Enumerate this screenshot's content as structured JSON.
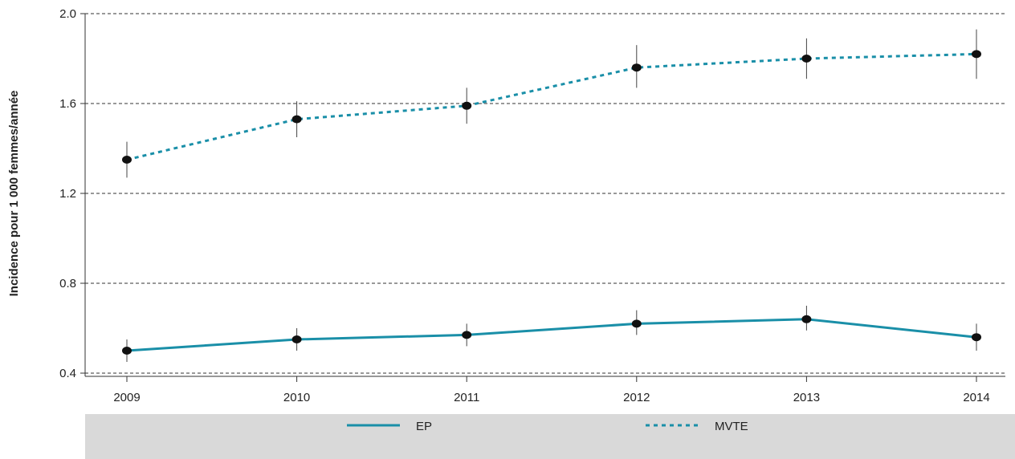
{
  "chart_data": {
    "type": "line",
    "ylabel": "Incidence pour 1 000 femmes/année",
    "xlabel": "",
    "categories": [
      "2009",
      "2010",
      "2011",
      "2012",
      "2013",
      "2014"
    ],
    "ylim": [
      0.4,
      2.0
    ],
    "yticks": [
      0.4,
      0.8,
      1.2,
      1.6,
      2.0
    ],
    "ytick_labels": [
      "0.4",
      "0.8",
      "1.2",
      "1.6",
      "2.0"
    ],
    "grid": true,
    "legend_position": "bottom",
    "series": [
      {
        "name": "EP",
        "style": "solid",
        "color": "#1a8fa8",
        "values": [
          0.5,
          0.55,
          0.57,
          0.62,
          0.64,
          0.56
        ],
        "ci_low": [
          0.45,
          0.5,
          0.52,
          0.57,
          0.59,
          0.5
        ],
        "ci_high": [
          0.55,
          0.6,
          0.62,
          0.68,
          0.7,
          0.62
        ]
      },
      {
        "name": "MVTE",
        "style": "dashed",
        "color": "#1a8fa8",
        "values": [
          1.35,
          1.53,
          1.59,
          1.76,
          1.8,
          1.82
        ],
        "ci_low": [
          1.27,
          1.45,
          1.51,
          1.67,
          1.71,
          1.71
        ],
        "ci_high": [
          1.43,
          1.61,
          1.67,
          1.86,
          1.89,
          1.93
        ]
      }
    ]
  }
}
